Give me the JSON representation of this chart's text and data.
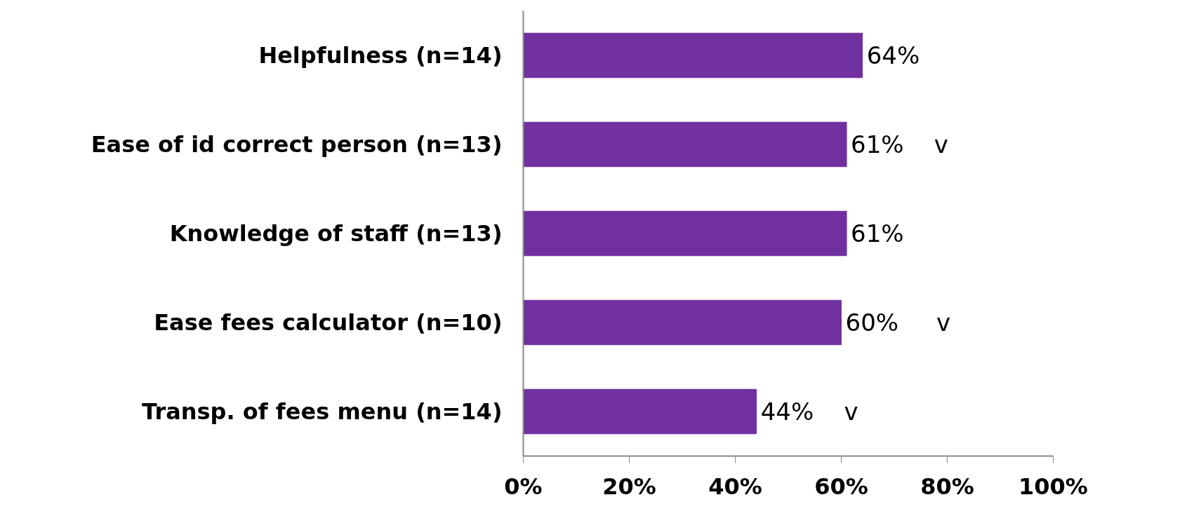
{
  "chart_data": {
    "type": "bar",
    "orientation": "horizontal",
    "categories": [
      "Helpfulness (n=14)",
      "Ease of id correct person (n=13)",
      "Knowledge of staff (n=13)",
      "Ease fees calculator (n=10)",
      "Transp. of fees menu (n=14)"
    ],
    "values": [
      64,
      61,
      61,
      60,
      44
    ],
    "value_labels": [
      "64%",
      "61%    v",
      "61%",
      "60%     v",
      "44%    v"
    ],
    "color": "#7030a0",
    "xlim": [
      0,
      100
    ],
    "xticks": [
      {
        "value": 0,
        "label": "0%"
      },
      {
        "value": 20,
        "label": "20%"
      },
      {
        "value": 40,
        "label": "40%"
      },
      {
        "value": 60,
        "label": "60%"
      },
      {
        "value": 80,
        "label": "80%"
      },
      {
        "value": 100,
        "label": "100%"
      }
    ],
    "grid": false
  }
}
